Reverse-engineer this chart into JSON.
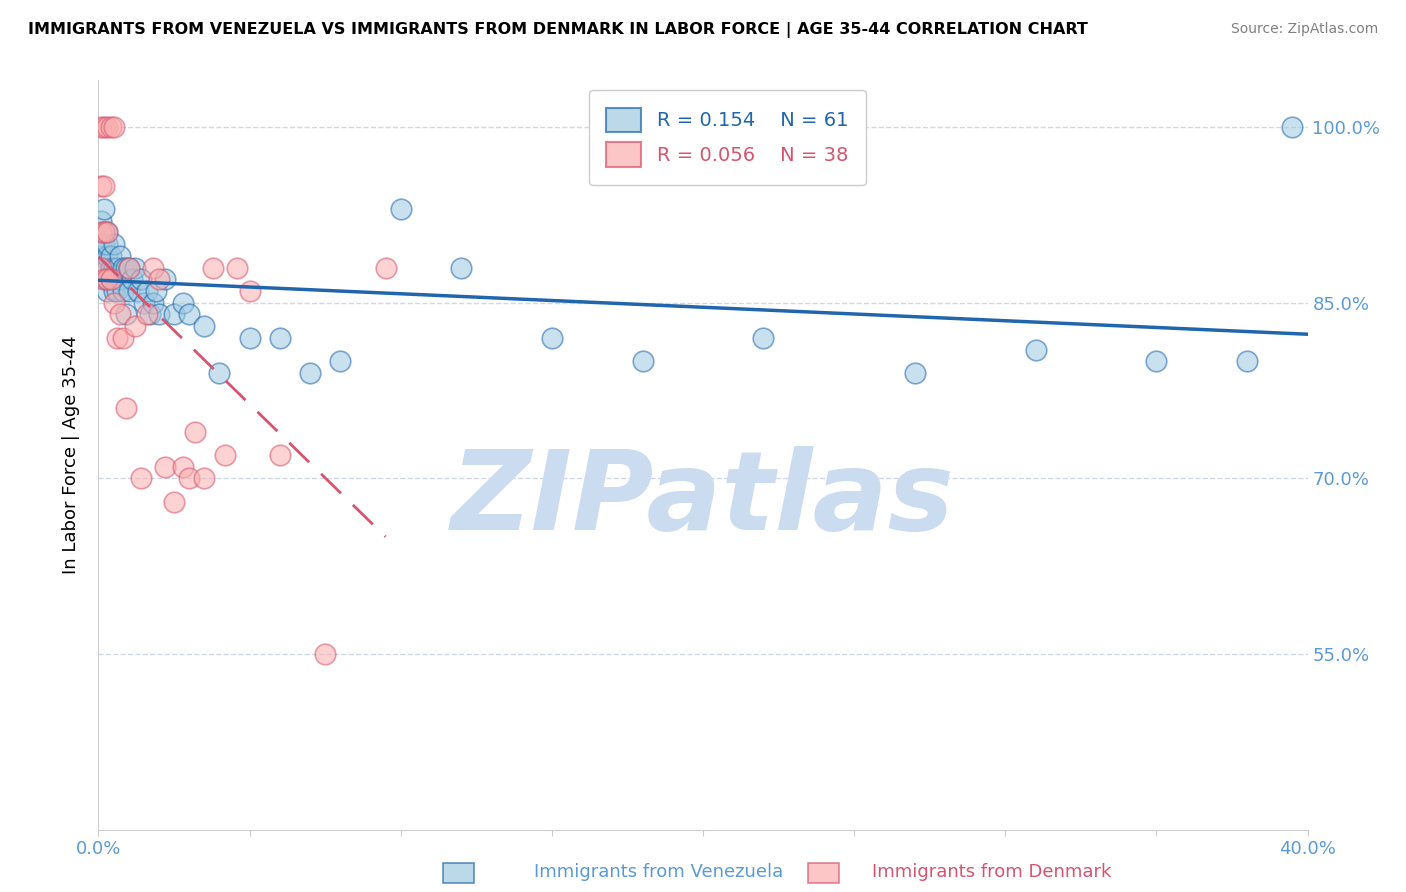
{
  "title": "IMMIGRANTS FROM VENEZUELA VS IMMIGRANTS FROM DENMARK IN LABOR FORCE | AGE 35-44 CORRELATION CHART",
  "source": "Source: ZipAtlas.com",
  "ylabel": "In Labor Force | Age 35-44",
  "xlim": [
    0.0,
    0.4
  ],
  "ylim": [
    0.4,
    1.04
  ],
  "yticks": [
    0.55,
    0.7,
    0.85,
    1.0
  ],
  "ytick_labels": [
    "55.0%",
    "70.0%",
    "85.0%",
    "100.0%"
  ],
  "xticks": [
    0.0,
    0.05,
    0.1,
    0.15,
    0.2,
    0.25,
    0.3,
    0.35,
    0.4
  ],
  "xtick_labels": [
    "0.0%",
    "",
    "",
    "",
    "",
    "",
    "",
    "",
    "40.0%"
  ],
  "venezuela_color": "#9ecae1",
  "denmark_color": "#fcaeae",
  "venezuela_label": "Immigrants from Venezuela",
  "denmark_label": "Immigrants from Denmark",
  "R_venezuela": 0.154,
  "N_venezuela": 61,
  "R_denmark": 0.056,
  "N_denmark": 38,
  "trend_blue_color": "#2166ac",
  "trend_pink_color": "#d6546e",
  "watermark": "ZIPatlas",
  "watermark_color": "#ccdcf0",
  "axis_color": "#5b9bd5",
  "grid_color": "#d0d8e8",
  "venezuela_x": [
    0.001,
    0.001,
    0.001,
    0.001,
    0.002,
    0.002,
    0.002,
    0.002,
    0.002,
    0.003,
    0.003,
    0.003,
    0.003,
    0.003,
    0.003,
    0.004,
    0.004,
    0.004,
    0.005,
    0.005,
    0.005,
    0.006,
    0.006,
    0.007,
    0.007,
    0.008,
    0.008,
    0.009,
    0.009,
    0.01,
    0.01,
    0.011,
    0.012,
    0.013,
    0.014,
    0.015,
    0.016,
    0.017,
    0.018,
    0.019,
    0.02,
    0.022,
    0.025,
    0.028,
    0.03,
    0.035,
    0.04,
    0.05,
    0.06,
    0.07,
    0.08,
    0.1,
    0.12,
    0.15,
    0.18,
    0.22,
    0.27,
    0.31,
    0.35,
    0.38,
    0.395
  ],
  "venezuela_y": [
    0.88,
    0.89,
    0.9,
    0.92,
    0.87,
    0.88,
    0.9,
    0.91,
    0.93,
    0.86,
    0.87,
    0.88,
    0.89,
    0.9,
    0.91,
    0.87,
    0.88,
    0.89,
    0.86,
    0.88,
    0.9,
    0.86,
    0.88,
    0.87,
    0.89,
    0.86,
    0.88,
    0.84,
    0.88,
    0.86,
    0.88,
    0.87,
    0.88,
    0.86,
    0.87,
    0.85,
    0.86,
    0.84,
    0.85,
    0.86,
    0.84,
    0.87,
    0.84,
    0.85,
    0.84,
    0.83,
    0.79,
    0.82,
    0.82,
    0.79,
    0.8,
    0.93,
    0.88,
    0.82,
    0.8,
    0.82,
    0.79,
    0.81,
    0.8,
    0.8,
    1.0
  ],
  "denmark_x": [
    0.001,
    0.001,
    0.001,
    0.001,
    0.002,
    0.002,
    0.002,
    0.002,
    0.003,
    0.003,
    0.003,
    0.004,
    0.004,
    0.005,
    0.005,
    0.006,
    0.007,
    0.008,
    0.009,
    0.01,
    0.012,
    0.014,
    0.016,
    0.018,
    0.02,
    0.022,
    0.025,
    0.028,
    0.03,
    0.032,
    0.035,
    0.038,
    0.042,
    0.046,
    0.05,
    0.06,
    0.075,
    0.095
  ],
  "denmark_y": [
    0.88,
    0.91,
    0.95,
    1.0,
    0.87,
    0.91,
    0.95,
    1.0,
    0.87,
    0.91,
    1.0,
    0.87,
    1.0,
    0.85,
    1.0,
    0.82,
    0.84,
    0.82,
    0.76,
    0.88,
    0.83,
    0.7,
    0.84,
    0.88,
    0.87,
    0.71,
    0.68,
    0.71,
    0.7,
    0.74,
    0.7,
    0.88,
    0.72,
    0.88,
    0.86,
    0.72,
    0.55,
    0.88
  ]
}
